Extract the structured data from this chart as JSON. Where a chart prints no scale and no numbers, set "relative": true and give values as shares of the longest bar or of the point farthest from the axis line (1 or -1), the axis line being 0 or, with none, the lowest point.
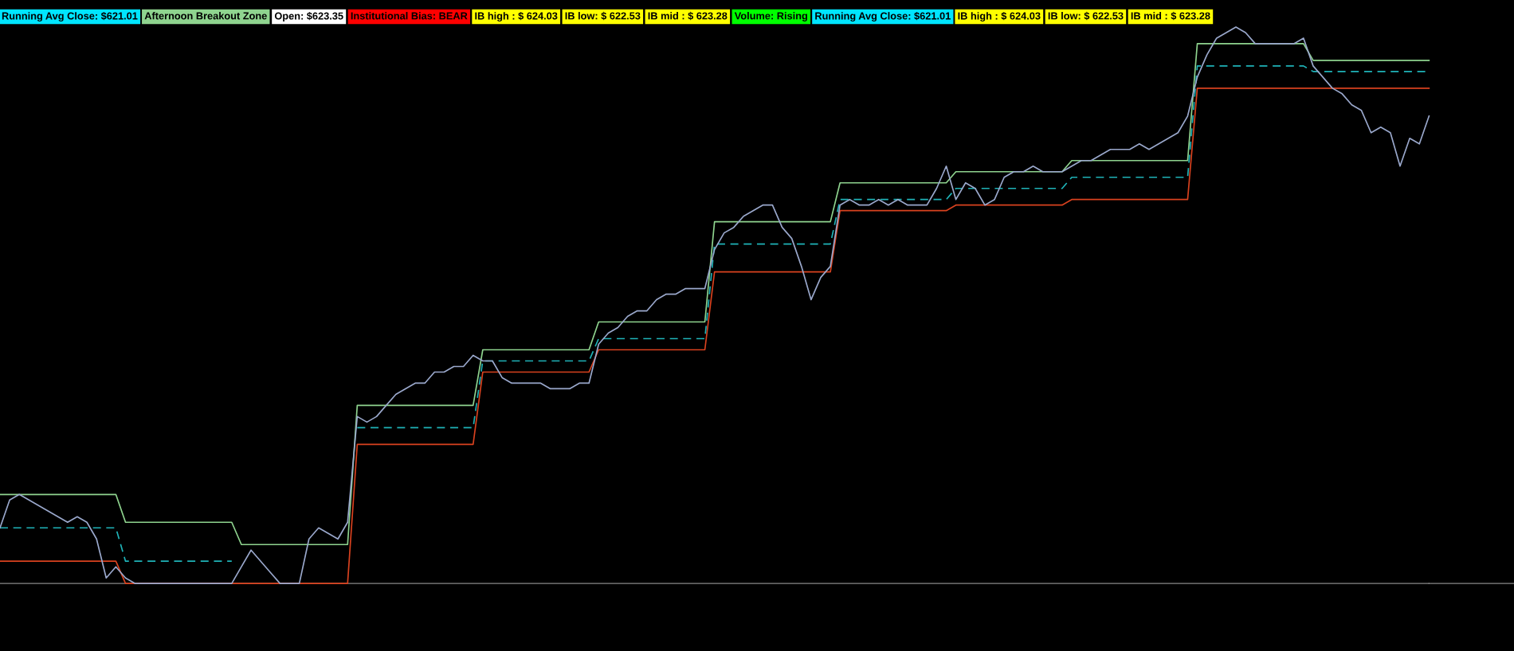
{
  "chart_data": {
    "type": "line",
    "relative": true,
    "categories": [
      null,
      null,
      null,
      null,
      null,
      null,
      null,
      null,
      null,
      null,
      null,
      null,
      null,
      null,
      null,
      null,
      null,
      null,
      null,
      null,
      null,
      null,
      null,
      null,
      null,
      null,
      null,
      null,
      null,
      null,
      null,
      null,
      null,
      null,
      null,
      null,
      null,
      null,
      null,
      null,
      null,
      null,
      null,
      null,
      null,
      null,
      null,
      null,
      null,
      null,
      null,
      null,
      null,
      null,
      null,
      null,
      null,
      null,
      null,
      null,
      null,
      null,
      null,
      null,
      null,
      null,
      null,
      null,
      null,
      null,
      null,
      null,
      null,
      null,
      null,
      null,
      null,
      null,
      null,
      null,
      null,
      null,
      null,
      null,
      null,
      null,
      null,
      null,
      null,
      null,
      null,
      null,
      null,
      null,
      null,
      null,
      null,
      null,
      null,
      null,
      null,
      null,
      null,
      null,
      null,
      null,
      null,
      null,
      null,
      null,
      null,
      null,
      null,
      null,
      null,
      null,
      null,
      null,
      null,
      null,
      null,
      null,
      null,
      null,
      null,
      null,
      null,
      null,
      null,
      null,
      null,
      null,
      null,
      null,
      null,
      null,
      null,
      null,
      null,
      null,
      null,
      null,
      null,
      null,
      null,
      null,
      null,
      null,
      null
    ],
    "series": [
      {
        "color": "#8fd48f",
        "line_style": "solid",
        "values": [
          0.16,
          0.16,
          0.16,
          0.16,
          0.16,
          0.16,
          0.16,
          0.16,
          0.16,
          0.16,
          0.16,
          0.16,
          0.16,
          0.11,
          0.11,
          0.11,
          0.11,
          0.11,
          0.11,
          0.11,
          0.11,
          0.11,
          0.11,
          0.11,
          0.11,
          0.07,
          0.07,
          0.07,
          0.07,
          0.07,
          0.07,
          0.07,
          0.07,
          0.07,
          0.07,
          0.07,
          0.07,
          0.32,
          0.32,
          0.32,
          0.32,
          0.32,
          0.32,
          0.32,
          0.32,
          0.32,
          0.32,
          0.32,
          0.32,
          0.32,
          0.42,
          0.42,
          0.42,
          0.42,
          0.42,
          0.42,
          0.42,
          0.42,
          0.42,
          0.42,
          0.42,
          0.42,
          0.47,
          0.47,
          0.47,
          0.47,
          0.47,
          0.47,
          0.47,
          0.47,
          0.47,
          0.47,
          0.47,
          0.47,
          0.65,
          0.65,
          0.65,
          0.65,
          0.65,
          0.65,
          0.65,
          0.65,
          0.65,
          0.65,
          0.65,
          0.65,
          0.65,
          0.72,
          0.72,
          0.72,
          0.72,
          0.72,
          0.72,
          0.72,
          0.72,
          0.72,
          0.72,
          0.72,
          0.72,
          0.74,
          0.74,
          0.74,
          0.74,
          0.74,
          0.74,
          0.74,
          0.74,
          0.74,
          0.74,
          0.74,
          0.74,
          0.76,
          0.76,
          0.76,
          0.76,
          0.76,
          0.76,
          0.76,
          0.76,
          0.76,
          0.76,
          0.76,
          0.76,
          0.76,
          0.97,
          0.97,
          0.97,
          0.97,
          0.97,
          0.97,
          0.97,
          0.97,
          0.97,
          0.97,
          0.97,
          0.97,
          0.94,
          0.94,
          0.94,
          0.94,
          0.94,
          0.94,
          0.94,
          0.94,
          0.94,
          0.94,
          0.94,
          0.94,
          0.94
        ]
      },
      {
        "color": "#d9421f",
        "line_style": "solid",
        "values": [
          0.04,
          0.04,
          0.04,
          0.04,
          0.04,
          0.04,
          0.04,
          0.04,
          0.04,
          0.04,
          0.04,
          0.04,
          0.04,
          0,
          0,
          0,
          0,
          0,
          0,
          0,
          0,
          0,
          0,
          0,
          0,
          0,
          0,
          0,
          0,
          0,
          0,
          0,
          0,
          0,
          0,
          0,
          0,
          0.25,
          0.25,
          0.25,
          0.25,
          0.25,
          0.25,
          0.25,
          0.25,
          0.25,
          0.25,
          0.25,
          0.25,
          0.25,
          0.38,
          0.38,
          0.38,
          0.38,
          0.38,
          0.38,
          0.38,
          0.38,
          0.38,
          0.38,
          0.38,
          0.38,
          0.42,
          0.42,
          0.42,
          0.42,
          0.42,
          0.42,
          0.42,
          0.42,
          0.42,
          0.42,
          0.42,
          0.42,
          0.56,
          0.56,
          0.56,
          0.56,
          0.56,
          0.56,
          0.56,
          0.56,
          0.56,
          0.56,
          0.56,
          0.56,
          0.56,
          0.67,
          0.67,
          0.67,
          0.67,
          0.67,
          0.67,
          0.67,
          0.67,
          0.67,
          0.67,
          0.67,
          0.67,
          0.68,
          0.68,
          0.68,
          0.68,
          0.68,
          0.68,
          0.68,
          0.68,
          0.68,
          0.68,
          0.68,
          0.68,
          0.69,
          0.69,
          0.69,
          0.69,
          0.69,
          0.69,
          0.69,
          0.69,
          0.69,
          0.69,
          0.69,
          0.69,
          0.69,
          0.89,
          0.89,
          0.89,
          0.89,
          0.89,
          0.89,
          0.89,
          0.89,
          0.89,
          0.89,
          0.89,
          0.89,
          0.89,
          0.89,
          0.89,
          0.89,
          0.89,
          0.89,
          0.89,
          0.89,
          0.89,
          0.89,
          0.89,
          0.89,
          0.89
        ]
      },
      {
        "color": "#1fb3b8",
        "line_style": "dashed",
        "values": [
          0.1,
          0.1,
          0.1,
          0.1,
          0.1,
          0.1,
          0.1,
          0.1,
          0.1,
          0.1,
          0.1,
          0.1,
          0.1,
          0.04,
          0.04,
          0.04,
          0.04,
          0.04,
          0.04,
          0.04,
          0.04,
          0.04,
          0.04,
          0.04,
          0.04,
          null,
          null,
          null,
          null,
          null,
          null,
          null,
          null,
          null,
          null,
          null,
          null,
          0.28,
          0.28,
          0.28,
          0.28,
          0.28,
          0.28,
          0.28,
          0.28,
          0.28,
          0.28,
          0.28,
          0.28,
          0.28,
          0.4,
          0.4,
          0.4,
          0.4,
          0.4,
          0.4,
          0.4,
          0.4,
          0.4,
          0.4,
          0.4,
          0.4,
          0.44,
          0.44,
          0.44,
          0.44,
          0.44,
          0.44,
          0.44,
          0.44,
          0.44,
          0.44,
          0.44,
          0.44,
          0.61,
          0.61,
          0.61,
          0.61,
          0.61,
          0.61,
          0.61,
          0.61,
          0.61,
          0.61,
          0.61,
          0.61,
          0.61,
          0.69,
          0.69,
          0.69,
          0.69,
          0.69,
          0.69,
          0.69,
          0.69,
          0.69,
          0.69,
          0.69,
          0.69,
          0.71,
          0.71,
          0.71,
          0.71,
          0.71,
          0.71,
          0.71,
          0.71,
          0.71,
          0.71,
          0.71,
          0.71,
          0.73,
          0.73,
          0.73,
          0.73,
          0.73,
          0.73,
          0.73,
          0.73,
          0.73,
          0.73,
          0.73,
          0.73,
          0.73,
          0.93,
          0.93,
          0.93,
          0.93,
          0.93,
          0.93,
          0.93,
          0.93,
          0.93,
          0.93,
          0.93,
          0.93,
          0.92,
          0.92,
          0.92,
          0.92,
          0.92,
          0.92,
          0.92,
          0.92,
          0.92,
          0.92,
          0.92,
          0.92,
          0.92
        ]
      },
      {
        "color": "#9aa8cc",
        "line_style": "solid",
        "values": [
          0.1,
          0.15,
          0.16,
          0.15,
          0.14,
          0.13,
          0.12,
          0.11,
          0.12,
          0.11,
          0.08,
          0.01,
          0.03,
          0.01,
          0,
          0,
          0,
          0,
          0,
          0,
          0,
          0,
          0,
          0,
          0,
          0.03,
          0.06,
          0.04,
          0.02,
          0,
          0,
          0,
          0.08,
          0.1,
          0.09,
          0.08,
          0.11,
          0.3,
          0.29,
          0.3,
          0.32,
          0.34,
          0.35,
          0.36,
          0.36,
          0.38,
          0.38,
          0.39,
          0.39,
          0.41,
          0.4,
          0.4,
          0.37,
          0.36,
          0.36,
          0.36,
          0.36,
          0.35,
          0.35,
          0.35,
          0.36,
          0.36,
          0.43,
          0.45,
          0.46,
          0.48,
          0.49,
          0.49,
          0.51,
          0.52,
          0.52,
          0.53,
          0.53,
          0.53,
          0.6,
          0.63,
          0.64,
          0.66,
          0.67,
          0.68,
          0.68,
          0.64,
          0.62,
          0.57,
          0.51,
          0.55,
          0.57,
          0.68,
          0.69,
          0.68,
          0.68,
          0.69,
          0.68,
          0.69,
          0.68,
          0.68,
          0.68,
          0.71,
          0.75,
          0.69,
          0.72,
          0.71,
          0.68,
          0.69,
          0.73,
          0.74,
          0.74,
          0.75,
          0.74,
          0.74,
          0.74,
          0.75,
          0.76,
          0.76,
          0.77,
          0.78,
          0.78,
          0.78,
          0.79,
          0.78,
          0.79,
          0.8,
          0.81,
          0.84,
          0.91,
          0.95,
          0.98,
          0.99,
          1.0,
          0.99,
          0.97,
          0.97,
          0.97,
          0.97,
          0.97,
          0.98,
          0.93,
          0.91,
          0.89,
          0.88,
          0.86,
          0.85,
          0.81,
          0.82,
          0.81,
          0.75,
          0.8,
          0.79,
          0.84
        ]
      }
    ],
    "annotations": [
      "Running Avg Close: $621.01",
      "Afternoon Breakout Zone",
      "Open: $623.35",
      "Institutional Bias: BEAR",
      "IB high : $ 624.03",
      "IB low: $ 622.53",
      "IB mid : $ 623.28",
      "Volume: Rising",
      "Running Avg Close: $621.01",
      "IB high : $ 624.03",
      "IB low: $ 622.53",
      "IB mid : $ 623.28"
    ]
  }
}
